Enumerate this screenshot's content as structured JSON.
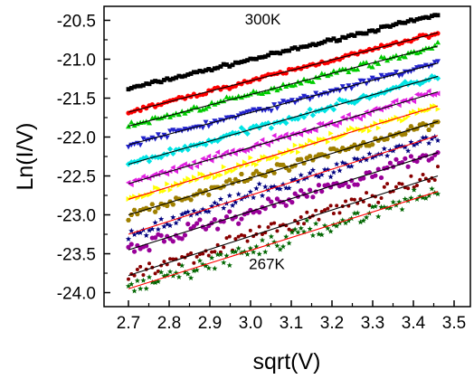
{
  "chart_data": {
    "type": "scatter",
    "title": "",
    "xlabel": "sqrt(V)",
    "ylabel": "Ln(I/V)",
    "xlim": [
      2.64,
      3.54
    ],
    "ylim": [
      -24.18,
      -20.32
    ],
    "xticks": [
      2.7,
      2.8,
      2.9,
      3.0,
      3.1,
      3.2,
      3.3,
      3.4,
      3.5
    ],
    "xtick_labels": [
      "2.7",
      "2.8",
      "2.9",
      "3.0",
      "3.1",
      "3.2",
      "3.3",
      "3.4",
      "3.5"
    ],
    "yticks": [
      -20.5,
      -21.0,
      -21.5,
      -22.0,
      -22.5,
      -23.0,
      -23.5,
      -24.0
    ],
    "ytick_labels": [
      "-20.5",
      "-21.0",
      "-21.5",
      "-22.0",
      "-22.5",
      "-23.0",
      "-23.5",
      "-24.0"
    ],
    "grid": false,
    "annotations": [
      {
        "text": "300K",
        "x": 3.03,
        "y": -20.48
      },
      {
        "text": "267K",
        "x": 3.04,
        "y": -23.63
      }
    ],
    "series": [
      {
        "x_start": 2.7,
        "x_end": 3.46,
        "y_start": -21.38,
        "y_end": -20.43,
        "color": "#000000",
        "marker": "square",
        "fit_color": "#000000",
        "scatter": 0.015
      },
      {
        "x_start": 2.7,
        "x_end": 3.46,
        "y_start": -21.68,
        "y_end": -20.66,
        "color": "#ff0000",
        "marker": "circle",
        "fit_color": "#000000",
        "scatter": 0.02
      },
      {
        "x_start": 2.7,
        "x_end": 3.46,
        "y_start": -21.86,
        "y_end": -20.83,
        "color": "#00cc00",
        "marker": "triangle-up",
        "fit_color": "#000000",
        "scatter": 0.03
      },
      {
        "x_start": 2.7,
        "x_end": 3.46,
        "y_start": -22.1,
        "y_end": -21.05,
        "color": "#2222cc",
        "marker": "triangle-down",
        "fit_color": "#000000",
        "scatter": 0.03
      },
      {
        "x_start": 2.7,
        "x_end": 3.46,
        "y_start": -22.35,
        "y_end": -21.22,
        "color": "#00e5e5",
        "marker": "diamond",
        "fit_color": "#000000",
        "scatter": 0.035
      },
      {
        "x_start": 2.7,
        "x_end": 3.46,
        "y_start": -22.6,
        "y_end": -21.42,
        "color": "#e020e0",
        "marker": "triangle-left",
        "fit_color": "#000000",
        "scatter": 0.04
      },
      {
        "x_start": 2.7,
        "x_end": 3.46,
        "y_start": -22.8,
        "y_end": -21.6,
        "color": "#ffff00",
        "marker": "triangle-right",
        "fit_color": "#ff0000",
        "scatter": 0.04
      },
      {
        "x_start": 2.7,
        "x_end": 3.46,
        "y_start": -23.0,
        "y_end": -21.8,
        "color": "#a08000",
        "marker": "hexagon",
        "fit_color": "#000000",
        "scatter": 0.05
      },
      {
        "x_start": 2.7,
        "x_end": 3.46,
        "y_start": -23.25,
        "y_end": -21.98,
        "color": "#000080",
        "marker": "star",
        "fit_color": "#ff0000",
        "scatter": 0.06
      },
      {
        "x_start": 2.7,
        "x_end": 3.46,
        "y_start": -23.45,
        "y_end": -22.2,
        "color": "#990099",
        "marker": "circle",
        "fit_color": "#000000",
        "scatter": 0.07
      },
      {
        "x_start": 2.7,
        "x_end": 3.46,
        "y_start": -23.78,
        "y_end": -22.5,
        "color": "#880000",
        "marker": "circle-small",
        "fit_color": "#000000",
        "scatter": 0.07
      },
      {
        "x_start": 2.7,
        "x_end": 3.46,
        "y_start": -23.95,
        "y_end": -22.7,
        "color": "#006600",
        "marker": "star",
        "fit_color": "#ff0000",
        "scatter": 0.09
      }
    ]
  }
}
